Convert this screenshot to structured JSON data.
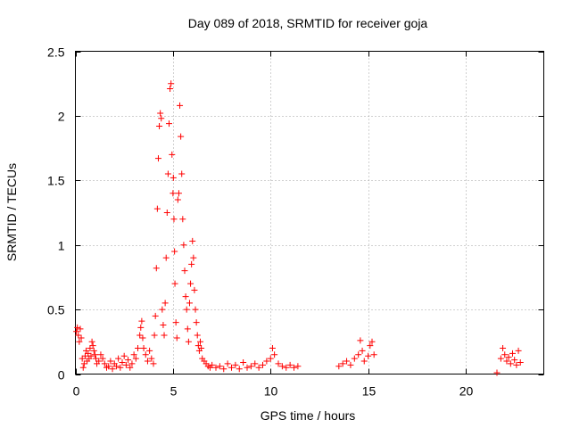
{
  "chart_data": {
    "type": "scatter",
    "title": "Day 089 of 2018, SRMTID for receiver goja",
    "xlabel": "GPS time / hours",
    "ylabel": "SRMTID / TECUs",
    "xlim": [
      0,
      24
    ],
    "ylim": [
      0,
      2.5
    ],
    "xticks": [
      0,
      5,
      10,
      15,
      20
    ],
    "yticks": [
      0,
      0.5,
      1,
      1.5,
      2,
      2.5
    ],
    "xtick_labels": [
      "0",
      "5",
      "10",
      "15",
      "20"
    ],
    "ytick_labels": [
      "0",
      "0.5",
      "1",
      "1.5",
      "2",
      "2.5"
    ],
    "grid": true,
    "marker": "+",
    "color": "#ff0000",
    "series": [
      {
        "name": "SRMTID",
        "points": [
          [
            0.05,
            0.33
          ],
          [
            0.1,
            0.36
          ],
          [
            0.15,
            0.3
          ],
          [
            0.2,
            0.25
          ],
          [
            0.25,
            0.35
          ],
          [
            0.3,
            0.28
          ],
          [
            0.35,
            0.12
          ],
          [
            0.4,
            0.05
          ],
          [
            0.45,
            0.08
          ],
          [
            0.5,
            0.14
          ],
          [
            0.55,
            0.18
          ],
          [
            0.6,
            0.1
          ],
          [
            0.65,
            0.16
          ],
          [
            0.7,
            0.12
          ],
          [
            0.75,
            0.2
          ],
          [
            0.8,
            0.14
          ],
          [
            0.85,
            0.25
          ],
          [
            0.9,
            0.22
          ],
          [
            0.95,
            0.18
          ],
          [
            1.0,
            0.15
          ],
          [
            1.05,
            0.12
          ],
          [
            1.1,
            0.08
          ],
          [
            1.2,
            0.1
          ],
          [
            1.3,
            0.15
          ],
          [
            1.4,
            0.12
          ],
          [
            1.5,
            0.08
          ],
          [
            1.6,
            0.05
          ],
          [
            1.7,
            0.06
          ],
          [
            1.8,
            0.1
          ],
          [
            1.9,
            0.04
          ],
          [
            2.0,
            0.08
          ],
          [
            2.1,
            0.06
          ],
          [
            2.2,
            0.12
          ],
          [
            2.3,
            0.05
          ],
          [
            2.4,
            0.09
          ],
          [
            2.5,
            0.14
          ],
          [
            2.6,
            0.07
          ],
          [
            2.7,
            0.11
          ],
          [
            2.8,
            0.05
          ],
          [
            2.9,
            0.08
          ],
          [
            3.0,
            0.15
          ],
          [
            3.1,
            0.12
          ],
          [
            3.2,
            0.2
          ],
          [
            3.3,
            0.3
          ],
          [
            3.35,
            0.36
          ],
          [
            3.4,
            0.41
          ],
          [
            3.45,
            0.28
          ],
          [
            3.5,
            0.2
          ],
          [
            3.6,
            0.15
          ],
          [
            3.7,
            0.1
          ],
          [
            3.8,
            0.18
          ],
          [
            3.9,
            0.12
          ],
          [
            4.0,
            0.08
          ],
          [
            4.05,
            0.3
          ],
          [
            4.1,
            0.45
          ],
          [
            4.15,
            0.82
          ],
          [
            4.2,
            1.28
          ],
          [
            4.25,
            1.67
          ],
          [
            4.3,
            1.92
          ],
          [
            4.35,
            2.02
          ],
          [
            4.4,
            1.98
          ],
          [
            4.45,
            0.5
          ],
          [
            4.5,
            0.38
          ],
          [
            4.55,
            0.3
          ],
          [
            4.6,
            0.55
          ],
          [
            4.65,
            0.9
          ],
          [
            4.7,
            1.25
          ],
          [
            4.75,
            1.55
          ],
          [
            4.8,
            1.94
          ],
          [
            4.85,
            2.21
          ],
          [
            4.9,
            2.25
          ],
          [
            4.95,
            1.7
          ],
          [
            5.0,
            1.4
          ],
          [
            5.02,
            1.52
          ],
          [
            5.05,
            1.2
          ],
          [
            5.08,
            0.95
          ],
          [
            5.1,
            0.7
          ],
          [
            5.15,
            0.4
          ],
          [
            5.2,
            0.28
          ],
          [
            5.25,
            1.35
          ],
          [
            5.3,
            1.4
          ],
          [
            5.35,
            2.08
          ],
          [
            5.4,
            1.84
          ],
          [
            5.45,
            1.55
          ],
          [
            5.5,
            1.2
          ],
          [
            5.55,
            1.0
          ],
          [
            5.6,
            0.8
          ],
          [
            5.65,
            0.6
          ],
          [
            5.7,
            0.5
          ],
          [
            5.75,
            0.35
          ],
          [
            5.8,
            0.25
          ],
          [
            5.85,
            0.55
          ],
          [
            5.9,
            0.7
          ],
          [
            5.95,
            0.85
          ],
          [
            6.0,
            1.03
          ],
          [
            6.05,
            0.9
          ],
          [
            6.1,
            0.65
          ],
          [
            6.15,
            0.5
          ],
          [
            6.2,
            0.4
          ],
          [
            6.25,
            0.3
          ],
          [
            6.3,
            0.22
          ],
          [
            6.35,
            0.18
          ],
          [
            6.4,
            0.25
          ],
          [
            6.45,
            0.2
          ],
          [
            6.5,
            0.12
          ],
          [
            6.6,
            0.1
          ],
          [
            6.7,
            0.08
          ],
          [
            6.8,
            0.06
          ],
          [
            6.9,
            0.05
          ],
          [
            7.0,
            0.07
          ],
          [
            7.2,
            0.05
          ],
          [
            7.4,
            0.06
          ],
          [
            7.6,
            0.04
          ],
          [
            7.8,
            0.08
          ],
          [
            8.0,
            0.05
          ],
          [
            8.2,
            0.07
          ],
          [
            8.4,
            0.04
          ],
          [
            8.6,
            0.09
          ],
          [
            8.8,
            0.05
          ],
          [
            9.0,
            0.06
          ],
          [
            9.2,
            0.08
          ],
          [
            9.4,
            0.05
          ],
          [
            9.6,
            0.07
          ],
          [
            9.8,
            0.1
          ],
          [
            10.0,
            0.12
          ],
          [
            10.1,
            0.2
          ],
          [
            10.2,
            0.15
          ],
          [
            10.4,
            0.08
          ],
          [
            10.6,
            0.06
          ],
          [
            10.8,
            0.05
          ],
          [
            11.0,
            0.07
          ],
          [
            11.2,
            0.05
          ],
          [
            11.4,
            0.06
          ],
          [
            13.5,
            0.06
          ],
          [
            13.7,
            0.08
          ],
          [
            13.9,
            0.1
          ],
          [
            14.1,
            0.07
          ],
          [
            14.3,
            0.12
          ],
          [
            14.5,
            0.15
          ],
          [
            14.6,
            0.26
          ],
          [
            14.7,
            0.18
          ],
          [
            14.8,
            0.1
          ],
          [
            15.0,
            0.14
          ],
          [
            15.1,
            0.22
          ],
          [
            15.2,
            0.25
          ],
          [
            15.3,
            0.15
          ],
          [
            21.6,
            0.01
          ],
          [
            21.8,
            0.12
          ],
          [
            21.9,
            0.2
          ],
          [
            22.0,
            0.15
          ],
          [
            22.1,
            0.1
          ],
          [
            22.2,
            0.13
          ],
          [
            22.3,
            0.08
          ],
          [
            22.4,
            0.16
          ],
          [
            22.5,
            0.11
          ],
          [
            22.6,
            0.07
          ],
          [
            22.7,
            0.18
          ],
          [
            22.8,
            0.09
          ]
        ]
      }
    ]
  }
}
